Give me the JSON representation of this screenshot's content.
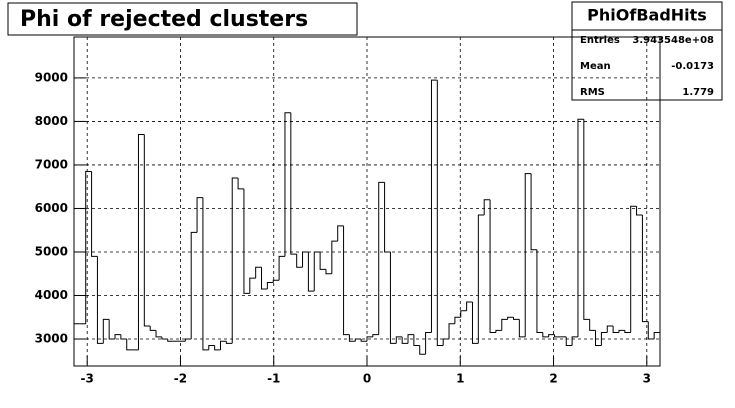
{
  "chart_data": {
    "type": "histogram",
    "title": "Phi of rejected clusters",
    "stats": {
      "name": "PhiOfBadHits",
      "rows": [
        [
          "Entries",
          "3.943548e+08"
        ],
        [
          "Mean",
          "-0.0173"
        ],
        [
          "RMS",
          "1.779"
        ]
      ]
    },
    "bins": [
      -3.1416,
      -3.0788,
      -3.0159,
      -2.9531,
      -2.8903,
      -2.8274,
      -2.7646,
      -2.7018,
      -2.6389,
      -2.5761,
      -2.5133,
      -2.4504,
      -2.3876,
      -2.3248,
      -2.2619,
      -2.1991,
      -2.1363,
      -2.0735,
      -2.0106,
      -1.9478,
      -1.885,
      -1.8221,
      -1.7593,
      -1.6965,
      -1.6336,
      -1.5708,
      -1.508,
      -1.4451,
      -1.3823,
      -1.3195,
      -1.2566,
      -1.1938,
      -1.131,
      -1.0681,
      -1.0053,
      -0.9425,
      -0.8796,
      -0.8168,
      -0.754,
      -0.6912,
      -0.6283,
      -0.5655,
      -0.5027,
      -0.4398,
      -0.377,
      -0.3142,
      -0.2513,
      -0.1885,
      -0.1257,
      -0.0628,
      0,
      0.0628,
      0.1257,
      0.1885,
      0.2513,
      0.3142,
      0.377,
      0.4398,
      0.5027,
      0.5655,
      0.6283,
      0.6912,
      0.754,
      0.8168,
      0.8796,
      0.9425,
      1.0053,
      1.0681,
      1.131,
      1.1938,
      1.2566,
      1.3195,
      1.3823,
      1.4451,
      1.508,
      1.5708,
      1.6336,
      1.6965,
      1.7593,
      1.8221,
      1.885,
      1.9478,
      2.0106,
      2.0735,
      2.1363,
      2.1991,
      2.2619,
      2.3248,
      2.3876,
      2.4504,
      2.5133,
      2.5761,
      2.6389,
      2.7018,
      2.7646,
      2.8274,
      2.8903,
      2.9531,
      3.0159,
      3.0788,
      3.1416
    ],
    "values": [
      3350,
      3350,
      6850,
      4900,
      2900,
      3450,
      3000,
      3100,
      3000,
      2750,
      2750,
      7700,
      3300,
      3200,
      3050,
      3000,
      2950,
      2950,
      2950,
      3000,
      5450,
      6250,
      2750,
      2850,
      2750,
      2950,
      2900,
      6700,
      6450,
      4050,
      4400,
      4650,
      4150,
      4300,
      4350,
      4900,
      8200,
      4950,
      4650,
      5000,
      4100,
      5000,
      4600,
      4500,
      5250,
      5600,
      3100,
      2950,
      3000,
      2950,
      3050,
      3100,
      6600,
      5000,
      2900,
      3050,
      2900,
      3100,
      2850,
      2650,
      3150,
      8950,
      2850,
      3000,
      3350,
      3500,
      3650,
      3850,
      2900,
      5850,
      6200,
      3150,
      3200,
      3450,
      3500,
      3450,
      3050,
      6800,
      5050,
      3150,
      3050,
      3100,
      3050,
      3050,
      2850,
      3050,
      8050,
      3450,
      3200,
      2850,
      3150,
      3300,
      3150,
      3200,
      3150,
      6050,
      5850,
      3400,
      3000,
      3150
    ],
    "color": "#000000",
    "xlim": [
      -3.1416,
      3.1416
    ],
    "xticks": [
      -3,
      -2,
      -1,
      0,
      1,
      2,
      3
    ],
    "ylim": [
      2380,
      9940
    ],
    "yticks": [
      3000,
      4000,
      5000,
      6000,
      7000,
      8000,
      9000
    ],
    "grid": true
  }
}
